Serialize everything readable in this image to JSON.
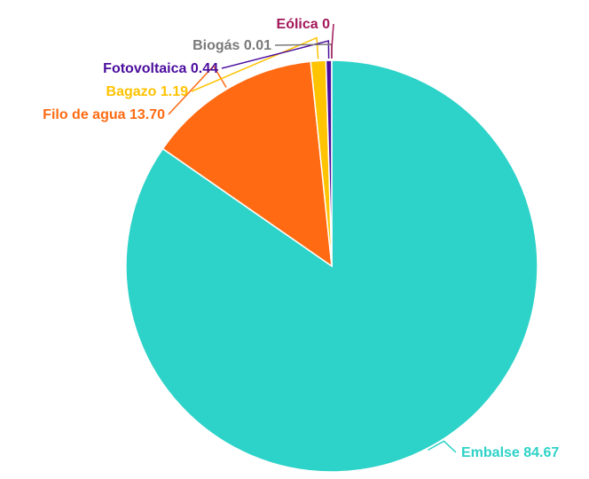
{
  "chart_data": {
    "type": "pie",
    "title": "",
    "slices": [
      {
        "name": "Embalse",
        "value": 84.67,
        "value_label": "84.67",
        "color": "#2dd2c8"
      },
      {
        "name": "Filo de agua",
        "value": 13.7,
        "value_label": "13.70",
        "color": "#ff6a12"
      },
      {
        "name": "Bagazo",
        "value": 1.19,
        "value_label": "1.19",
        "color": "#ffc300"
      },
      {
        "name": "Fotovoltaica",
        "value": 0.44,
        "value_label": "0.44",
        "color": "#4a0d9e"
      },
      {
        "name": "Biogás",
        "value": 0.01,
        "value_label": "0.01",
        "color": "#7a7a7a"
      },
      {
        "name": "Eólica",
        "value": 0,
        "value_label": "0",
        "color": "#a3185a"
      }
    ]
  }
}
